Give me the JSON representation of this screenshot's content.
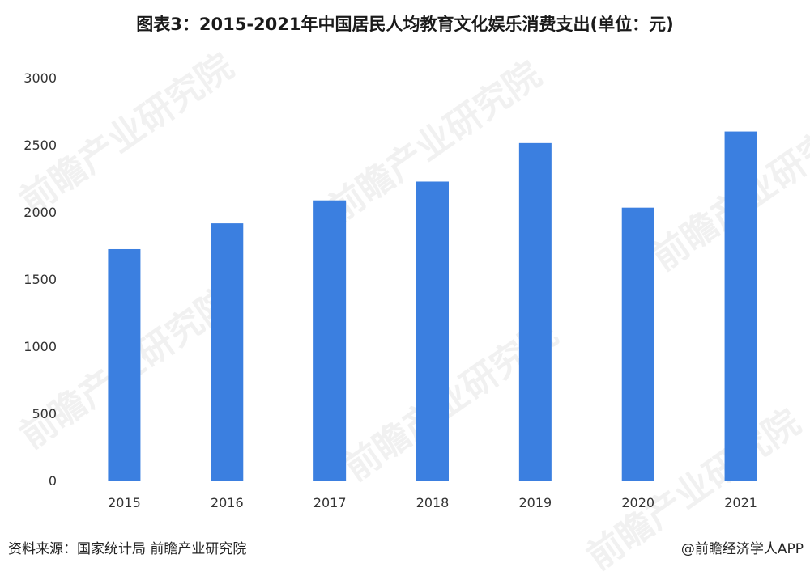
{
  "header": {
    "title": "图表3：2015-2021年中国居民人均教育文化娱乐消费支出(单位：元)"
  },
  "footer": {
    "source": "资料来源：国家统计局 前瞻产业研究院",
    "credit": "@前瞻经济学人APP"
  },
  "watermark": {
    "text": "前瞻产业研究院"
  },
  "colors": {
    "bar": "#3b7fe0",
    "axis": "#c8c8c8",
    "tick_text": "#333333"
  },
  "chart_data": {
    "type": "bar",
    "title": "图表3：2015-2021年中国居民人均教育文化娱乐消费支出(单位：元)",
    "categories": [
      "2015",
      "2016",
      "2017",
      "2018",
      "2019",
      "2020",
      "2021"
    ],
    "values": [
      1723,
      1915,
      2086,
      2226,
      2513,
      2032,
      2599
    ],
    "xlabel": "",
    "ylabel": "",
    "ylim": [
      0,
      3000
    ],
    "yticks": [
      0,
      500,
      1000,
      1500,
      2000,
      2500,
      3000
    ],
    "grid": false,
    "legend": "none"
  }
}
